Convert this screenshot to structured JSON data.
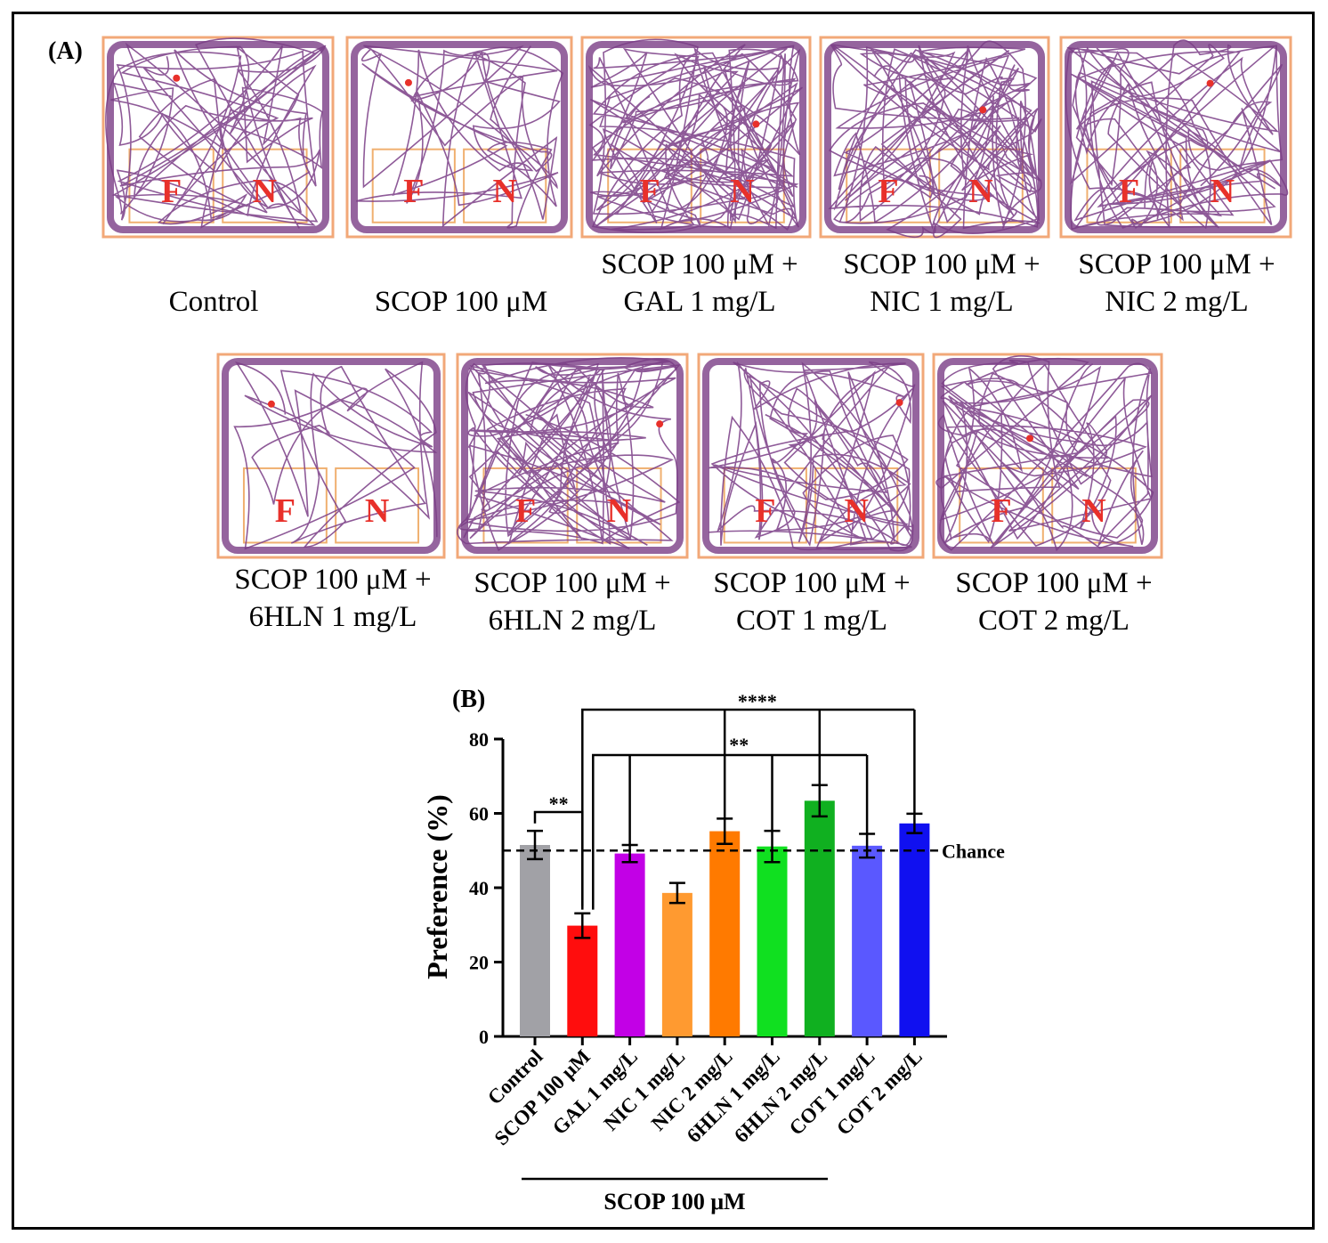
{
  "panel_a_label": "(A)",
  "panel_b_label": "(B)",
  "zone_labels": {
    "familiar": "F",
    "novel": "N"
  },
  "colors": {
    "track": "#7a3d86",
    "arena_border": "#f2a878",
    "zone_border": "#f0b070",
    "zone_letter": "#e8302a"
  },
  "tracks": [
    {
      "line1": "Control",
      "line2": ""
    },
    {
      "line1": "SCOP 100 μM",
      "line2": ""
    },
    {
      "line1": "SCOP 100 μM +",
      "line2": "GAL 1 mg/L"
    },
    {
      "line1": "SCOP 100 μM +",
      "line2": "NIC 1 mg/L"
    },
    {
      "line1": "SCOP 100 μM +",
      "line2": "NIC 2 mg/L"
    },
    {
      "line1": "SCOP 100 μM +",
      "line2": "6HLN 1 mg/L"
    },
    {
      "line1": "SCOP 100 μM +",
      "line2": "6HLN 2 mg/L"
    },
    {
      "line1": "SCOP 100 μM +",
      "line2": "COT 1 mg/L"
    },
    {
      "line1": "SCOP 100 μM +",
      "line2": "COT 2 mg/L"
    }
  ],
  "chart_data": {
    "type": "bar",
    "title": "",
    "ylabel": "Preference (%)",
    "xlabel": "",
    "ylim": [
      0,
      80
    ],
    "yticks": [
      0,
      20,
      40,
      60,
      80
    ],
    "categories": [
      "Control",
      "SCOP 100 μM",
      "GAL 1 mg/L",
      "NIC 1 mg/L",
      "NIC 2 mg/L",
      "6HLN 1 mg/L",
      "6HLN 2 mg/L",
      "COT 1 mg/L",
      "COT 2 mg/L"
    ],
    "values": [
      51.5,
      29.8,
      49.2,
      38.6,
      55.2,
      51.1,
      63.4,
      51.3,
      57.3
    ],
    "errors": [
      3.8,
      3.3,
      2.3,
      2.7,
      3.4,
      4.2,
      4.2,
      3.2,
      2.6
    ],
    "colors": [
      "#a1a1a6",
      "#ff0d0d",
      "#c200e6",
      "#ff9a30",
      "#ff7a00",
      "#10e020",
      "#10b020",
      "#5a58ff",
      "#1010f0"
    ],
    "chance_level": 50,
    "chance_label": "Chance",
    "group_label": "SCOP 100 μM",
    "significance": [
      {
        "label": "**",
        "from": 0,
        "to": [
          1
        ]
      },
      {
        "label": "****",
        "from": 1,
        "to": [
          4,
          6,
          8
        ]
      },
      {
        "label": "**",
        "from": 1,
        "to": [
          2,
          5,
          7
        ]
      }
    ]
  }
}
